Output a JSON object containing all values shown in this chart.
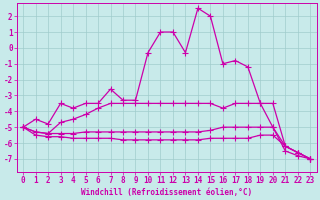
{
  "xlabel": "Windchill (Refroidissement éolien,°C)",
  "background_color": "#c8eaea",
  "grid_color": "#a0cccc",
  "line_color": "#cc00aa",
  "x_ticks": [
    0,
    1,
    2,
    3,
    4,
    5,
    6,
    7,
    8,
    9,
    10,
    11,
    12,
    13,
    14,
    15,
    16,
    17,
    18,
    19,
    20,
    21,
    22,
    23
  ],
  "y_ticks": [
    -7,
    -6,
    -5,
    -4,
    -3,
    -2,
    -1,
    0,
    1,
    2
  ],
  "xlim": [
    -0.5,
    23.5
  ],
  "ylim": [
    -7.8,
    2.8
  ],
  "series": [
    [
      -5.0,
      -4.5,
      -4.8,
      -3.5,
      -3.8,
      -3.5,
      -3.5,
      -2.6,
      -3.3,
      -3.3,
      -0.3,
      1.0,
      1.0,
      -0.3,
      2.5,
      2.0,
      -1.0,
      -0.8,
      -1.2,
      -3.5,
      -5.0,
      -6.5,
      -6.8,
      -7.0
    ],
    [
      -5.0,
      -5.3,
      -5.4,
      -4.7,
      -4.5,
      -4.2,
      -3.8,
      -3.5,
      -3.5,
      -3.5,
      -3.5,
      -3.5,
      -3.5,
      -3.5,
      -3.5,
      -3.5,
      -3.8,
      -3.5,
      -3.5,
      -3.5,
      -3.5,
      -6.2,
      -6.6,
      -7.0
    ],
    [
      -5.0,
      -5.3,
      -5.4,
      -5.4,
      -5.4,
      -5.3,
      -5.3,
      -5.3,
      -5.3,
      -5.3,
      -5.3,
      -5.3,
      -5.3,
      -5.3,
      -5.3,
      -5.2,
      -5.0,
      -5.0,
      -5.0,
      -5.0,
      -5.0,
      -6.2,
      -6.6,
      -7.0
    ],
    [
      -5.0,
      -5.5,
      -5.6,
      -5.6,
      -5.7,
      -5.7,
      -5.7,
      -5.7,
      -5.8,
      -5.8,
      -5.8,
      -5.8,
      -5.8,
      -5.8,
      -5.8,
      -5.7,
      -5.7,
      -5.7,
      -5.7,
      -5.5,
      -5.5,
      -6.2,
      -6.6,
      -7.0
    ]
  ],
  "marker": "+",
  "markersize": 4,
  "linewidth": 0.9,
  "tick_fontsize": 5.5,
  "xlabel_fontsize": 5.5
}
